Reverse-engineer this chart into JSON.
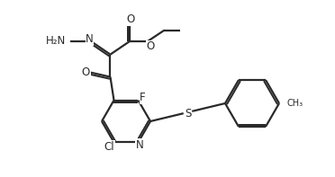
{
  "background_color": "#ffffff",
  "line_color": "#2a2a2a",
  "line_width": 1.6,
  "text_color": "#2a2a2a",
  "font_size": 8.5,
  "figsize": [
    3.72,
    1.97
  ],
  "dpi": 100,
  "xlim": [
    0,
    37.2
  ],
  "ylim": [
    0,
    19.7
  ]
}
